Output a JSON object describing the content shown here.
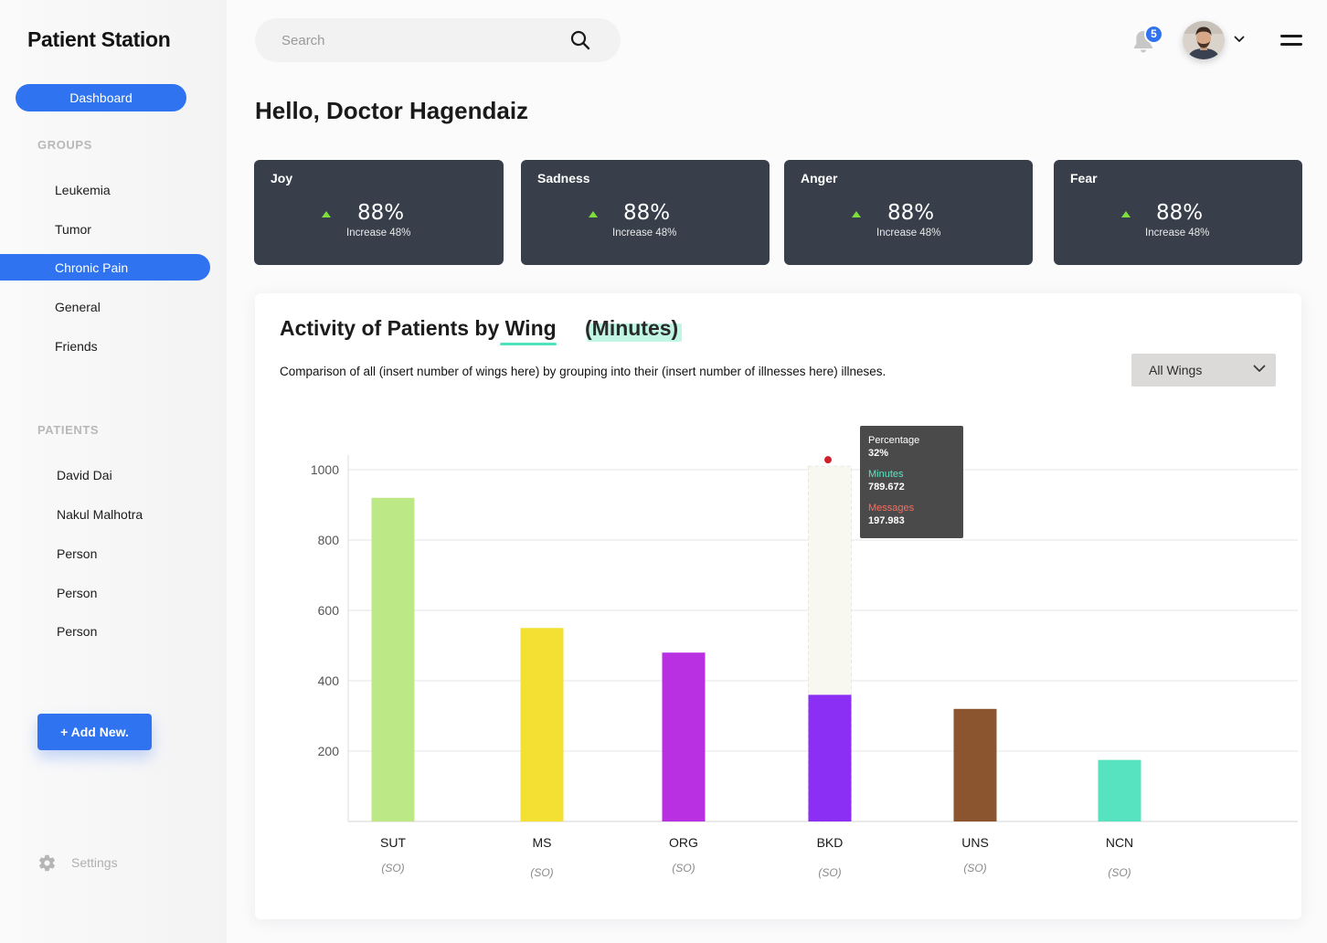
{
  "app": {
    "title": "Patient Station"
  },
  "sidebar": {
    "dashboard_label": "Dashboard",
    "groups_label": "GROUPS",
    "groups": [
      "Leukemia",
      "Tumor",
      "Chronic Pain",
      "General",
      "Friends"
    ],
    "active_group": "Chronic Pain",
    "patients_label": "PATIENTS",
    "patients": [
      "David Dai",
      "Nakul Malhotra",
      "Person",
      "Person",
      "Person"
    ],
    "add_label": "+ Add New.",
    "settings_label": "Settings"
  },
  "topbar": {
    "search_placeholder": "Search",
    "notification_count": "5"
  },
  "greeting": "Hello, Doctor Hagendaiz",
  "cards": [
    {
      "title": "Joy",
      "value": "88%",
      "change": "Increase 48%"
    },
    {
      "title": "Sadness",
      "value": "88%",
      "change": "Increase 48%"
    },
    {
      "title": "Anger",
      "value": "88%",
      "change": "Increase 48%"
    },
    {
      "title": "Fear",
      "value": "88%",
      "change": "Increase 48%"
    }
  ],
  "panel": {
    "title_prefix": "Activity of Patients by ",
    "title_wing": "Wing",
    "title_unit": "(Minutes)",
    "subtitle": "Comparison of all (insert number of wings here) by grouping into their (insert number of illnesses here) illneses.",
    "filter_value": "All Wings"
  },
  "tooltip": {
    "percentage_label": "Percentage",
    "percentage_value": "32%",
    "minutes_label": "Minutes",
    "minutes_value": "789.672",
    "messages_label": "Messages",
    "messages_value": "197.983"
  },
  "colors": {
    "accent": "#2f73f0",
    "card_bg": "#383f4b",
    "increase": "#7dde3c",
    "tooltip_dot": "#d0212b"
  },
  "chart_data": {
    "type": "bar",
    "title": "Activity of Patients by Wing (Minutes)",
    "categories": [
      "SUT",
      "MS",
      "ORG",
      "BKD",
      "UNS",
      "NCN"
    ],
    "sublabels": [
      "(SO)",
      "(SO)",
      "(SO)",
      "(SO)",
      "(SO)",
      "(SO)"
    ],
    "values": [
      920,
      550,
      480,
      360,
      320,
      175
    ],
    "colors": [
      "#bce985",
      "#f4e033",
      "#b92fe2",
      "#8b2ff5",
      "#8b562f",
      "#58e3c0"
    ],
    "highlight_index": 3,
    "highlight_total": 1010,
    "yticks": [
      200,
      400,
      600,
      800,
      1000
    ],
    "ylim": [
      0,
      1000
    ],
    "xlabel": "",
    "ylabel": "",
    "grid": true
  }
}
